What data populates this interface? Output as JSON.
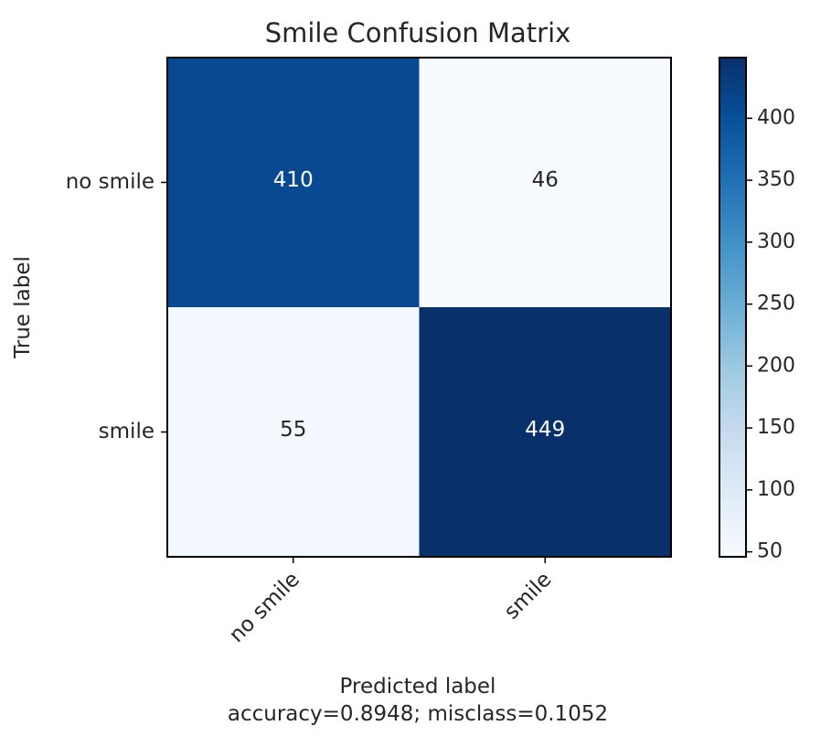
{
  "chart_data": {
    "type": "heatmap",
    "title": "Smile Confusion Matrix",
    "xlabel": "Predicted label",
    "xlabel_note": "accuracy=0.8948; misclass=0.1052",
    "ylabel": "True label",
    "x_categories": [
      "no smile",
      "smile"
    ],
    "y_categories": [
      "no smile",
      "smile"
    ],
    "values": [
      [
        410,
        46
      ],
      [
        55,
        449
      ]
    ],
    "colormap": "Blues",
    "colorbar": {
      "range": [
        46,
        449
      ],
      "ticks": [
        50,
        100,
        150,
        200,
        250,
        300,
        350,
        400
      ]
    },
    "grid": false
  }
}
